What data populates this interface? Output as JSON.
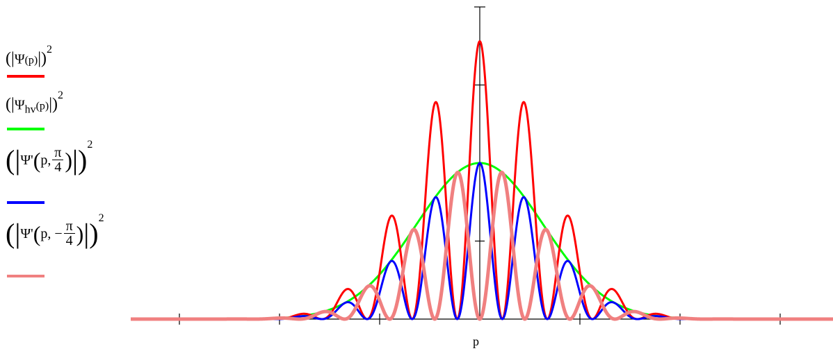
{
  "chart_data": {
    "type": "line",
    "title": "",
    "xlabel": "p",
    "ylabel": "",
    "xlim": [
      -7,
      7
    ],
    "ylim": [
      0,
      1
    ],
    "x_ticks": [
      -6,
      -4,
      -2,
      0,
      2,
      4,
      6
    ],
    "y_ticks": [
      0,
      0.25,
      0.5,
      0.75,
      1
    ],
    "grid": false,
    "legend_position": "left",
    "series": [
      {
        "name": "(|Ψ(p)|)^2",
        "color": "#ff0000",
        "envelope_peak": 0.445,
        "fringe_period": 0.9,
        "fringe_phase": 0
      },
      {
        "name": "(|Ψ_hv(p)|)^2",
        "color": "#00ff00",
        "envelope_peak": 0.5
      },
      {
        "name": "(|Ψ'(p, π/4)|)^2",
        "color": "#0000ff",
        "envelope_peak": 0.5,
        "fringe_period": 0.9,
        "fringe_phase": 0
      },
      {
        "name": "(|Ψ'(p, −π/4)|)^2",
        "color": "#f08080",
        "envelope_peak": 0.5,
        "fringe_period": 0.9,
        "fringe_phase": 0.5
      }
    ],
    "envelope_width": 3.2
  },
  "legend": {
    "e1": {
      "psi": "Ψ",
      "arg": "(p)",
      "exp": "2"
    },
    "e2": {
      "psi": "Ψ",
      "sub": "hv",
      "arg": "(p)",
      "exp": "2"
    },
    "e3": {
      "psi": "Ψ'",
      "p": "p,",
      "num": "π",
      "den": "4",
      "exp": "2"
    },
    "e4": {
      "psi": "Ψ'",
      "p": "p, −",
      "num": "π",
      "den": "4",
      "exp": "2"
    }
  }
}
